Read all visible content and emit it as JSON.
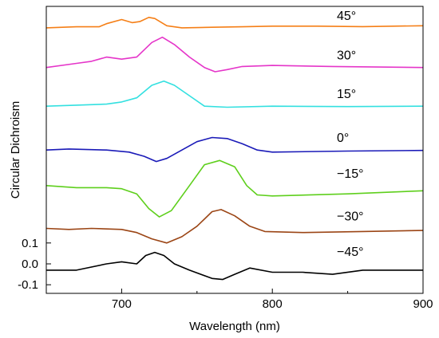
{
  "chart_data": {
    "type": "line",
    "title": "",
    "xlabel": "Wavelength (nm)",
    "ylabel": "Circular Dichroism",
    "xlim": [
      650,
      900
    ],
    "x_ticks": [
      700,
      800,
      900
    ],
    "x_tick_labels": [
      "700",
      "800",
      "900"
    ],
    "y_ticks": [
      0.1,
      0.0,
      -0.1
    ],
    "y_tick_labels": [
      "0.1",
      "0.0",
      "-0.1"
    ],
    "grid": false,
    "legend": "none",
    "series": [
      {
        "name": "45°",
        "color": "#f57f17",
        "offset": 1.13,
        "points": [
          [
            650,
            0.0
          ],
          [
            670,
            0.005
          ],
          [
            685,
            0.005
          ],
          [
            690,
            0.02
          ],
          [
            700,
            0.04
          ],
          [
            707,
            0.025
          ],
          [
            712,
            0.03
          ],
          [
            718,
            0.05
          ],
          [
            722,
            0.045
          ],
          [
            730,
            0.01
          ],
          [
            740,
            0.0
          ],
          [
            760,
            0.003
          ],
          [
            780,
            0.005
          ],
          [
            800,
            0.008
          ],
          [
            830,
            0.008
          ],
          [
            860,
            0.006
          ],
          [
            900,
            0.01
          ]
        ]
      },
      {
        "name": "30°",
        "color": "#e535c9",
        "offset": 0.94,
        "points": [
          [
            650,
            0.0
          ],
          [
            670,
            0.02
          ],
          [
            680,
            0.03
          ],
          [
            690,
            0.05
          ],
          [
            700,
            0.04
          ],
          [
            710,
            0.05
          ],
          [
            720,
            0.12
          ],
          [
            727,
            0.145
          ],
          [
            735,
            0.11
          ],
          [
            745,
            0.05
          ],
          [
            755,
            0.0
          ],
          [
            762,
            -0.02
          ],
          [
            770,
            -0.01
          ],
          [
            780,
            0.005
          ],
          [
            800,
            0.01
          ],
          [
            840,
            0.005
          ],
          [
            900,
            0.0
          ]
        ]
      },
      {
        "name": "15°",
        "color": "#33e0e0",
        "offset": 0.755,
        "points": [
          [
            650,
            0.0
          ],
          [
            670,
            0.005
          ],
          [
            690,
            0.01
          ],
          [
            700,
            0.02
          ],
          [
            710,
            0.04
          ],
          [
            720,
            0.1
          ],
          [
            728,
            0.12
          ],
          [
            735,
            0.1
          ],
          [
            745,
            0.05
          ],
          [
            755,
            0.0
          ],
          [
            770,
            -0.005
          ],
          [
            800,
            0.0
          ],
          [
            850,
            -0.002
          ],
          [
            900,
            0.0
          ]
        ]
      },
      {
        "name": "0°",
        "color": "#1a1ab8",
        "offset": 0.545,
        "points": [
          [
            650,
            0.0
          ],
          [
            665,
            0.005
          ],
          [
            690,
            0.0
          ],
          [
            705,
            -0.01
          ],
          [
            715,
            -0.03
          ],
          [
            723,
            -0.055
          ],
          [
            730,
            -0.04
          ],
          [
            740,
            0.0
          ],
          [
            750,
            0.04
          ],
          [
            760,
            0.06
          ],
          [
            770,
            0.055
          ],
          [
            780,
            0.03
          ],
          [
            790,
            0.0
          ],
          [
            800,
            -0.01
          ],
          [
            850,
            -0.005
          ],
          [
            900,
            -0.002
          ]
        ]
      },
      {
        "name": "−15°",
        "color": "#5ecf1c",
        "offset": 0.375,
        "points": [
          [
            650,
            0.0
          ],
          [
            670,
            -0.01
          ],
          [
            690,
            -0.01
          ],
          [
            700,
            -0.015
          ],
          [
            710,
            -0.04
          ],
          [
            718,
            -0.11
          ],
          [
            725,
            -0.15
          ],
          [
            733,
            -0.12
          ],
          [
            745,
            0.0
          ],
          [
            755,
            0.1
          ],
          [
            765,
            0.12
          ],
          [
            775,
            0.09
          ],
          [
            783,
            0.0
          ],
          [
            790,
            -0.045
          ],
          [
            800,
            -0.05
          ],
          [
            850,
            -0.04
          ],
          [
            900,
            -0.025
          ]
        ]
      },
      {
        "name": "−30°",
        "color": "#9b4515",
        "offset": 0.17,
        "points": [
          [
            650,
            0.0
          ],
          [
            665,
            -0.005
          ],
          [
            680,
            0.0
          ],
          [
            700,
            -0.005
          ],
          [
            710,
            -0.02
          ],
          [
            720,
            -0.05
          ],
          [
            730,
            -0.07
          ],
          [
            740,
            -0.04
          ],
          [
            750,
            0.01
          ],
          [
            760,
            0.08
          ],
          [
            766,
            0.09
          ],
          [
            775,
            0.06
          ],
          [
            785,
            0.01
          ],
          [
            795,
            -0.015
          ],
          [
            820,
            -0.02
          ],
          [
            860,
            -0.015
          ],
          [
            900,
            -0.01
          ]
        ]
      },
      {
        "name": "−45°",
        "color": "#000000",
        "offset": 0.0,
        "points": [
          [
            650,
            -0.03
          ],
          [
            670,
            -0.03
          ],
          [
            690,
            0.0
          ],
          [
            700,
            0.01
          ],
          [
            710,
            0.0
          ],
          [
            716,
            0.04
          ],
          [
            722,
            0.055
          ],
          [
            728,
            0.04
          ],
          [
            735,
            0.0
          ],
          [
            745,
            -0.03
          ],
          [
            760,
            -0.07
          ],
          [
            767,
            -0.075
          ],
          [
            775,
            -0.05
          ],
          [
            785,
            -0.02
          ],
          [
            800,
            -0.04
          ],
          [
            820,
            -0.04
          ],
          [
            840,
            -0.05
          ],
          [
            860,
            -0.03
          ],
          [
            900,
            -0.03
          ]
        ]
      }
    ]
  }
}
